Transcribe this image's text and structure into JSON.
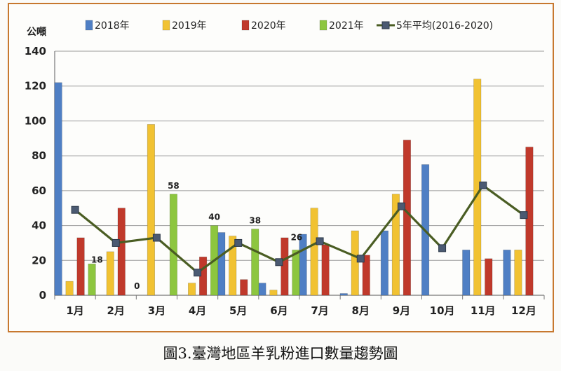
{
  "caption": "圖3.臺灣地區羊乳粉進口數量趨勢圖",
  "chart_data": {
    "type": "bar",
    "unit_label": "公噸",
    "categories": [
      "1月",
      "2月",
      "3月",
      "4月",
      "5月",
      "6月",
      "7月",
      "8月",
      "9月",
      "10月",
      "11月",
      "12月"
    ],
    "ylim": [
      0,
      140
    ],
    "yticks": [
      0,
      20,
      40,
      60,
      80,
      100,
      120,
      140
    ],
    "grid": true,
    "legend_position": "top",
    "series": [
      {
        "name": "2018年",
        "type": "bar",
        "color": "#4f7fc4",
        "values": [
          122,
          0,
          0,
          0,
          36,
          7,
          35,
          1,
          37,
          75,
          26,
          26
        ]
      },
      {
        "name": "2019年",
        "type": "bar",
        "color": "#f1c232",
        "values": [
          8,
          25,
          98,
          7,
          34,
          3,
          50,
          37,
          58,
          0,
          124,
          26
        ]
      },
      {
        "name": "2020年",
        "type": "bar",
        "color": "#c0392b",
        "values": [
          33,
          50,
          0,
          22,
          9,
          33,
          29,
          23,
          89,
          0,
          21,
          85
        ]
      },
      {
        "name": "2021年",
        "type": "bar",
        "color": "#8dc63f",
        "values": [
          18,
          0,
          58,
          40,
          38,
          26,
          null,
          null,
          null,
          null,
          null,
          null
        ]
      },
      {
        "name": "5年平均(2016-2020)",
        "type": "line",
        "color": "#4a5d23",
        "marker_color": "#4b5a72",
        "values": [
          49,
          30,
          33,
          13,
          30,
          19,
          31,
          21,
          51,
          27,
          63,
          46
        ]
      }
    ],
    "data_labels": [
      {
        "series": "2021年",
        "category": "1月",
        "text": "18"
      },
      {
        "series": "2021年",
        "category": "2月",
        "text": "0"
      },
      {
        "series": "2021年",
        "category": "3月",
        "text": "58"
      },
      {
        "series": "2021年",
        "category": "4月",
        "text": "40"
      },
      {
        "series": "2021年",
        "category": "5月",
        "text": "38"
      },
      {
        "series": "2021年",
        "category": "6月",
        "text": "26"
      }
    ]
  }
}
